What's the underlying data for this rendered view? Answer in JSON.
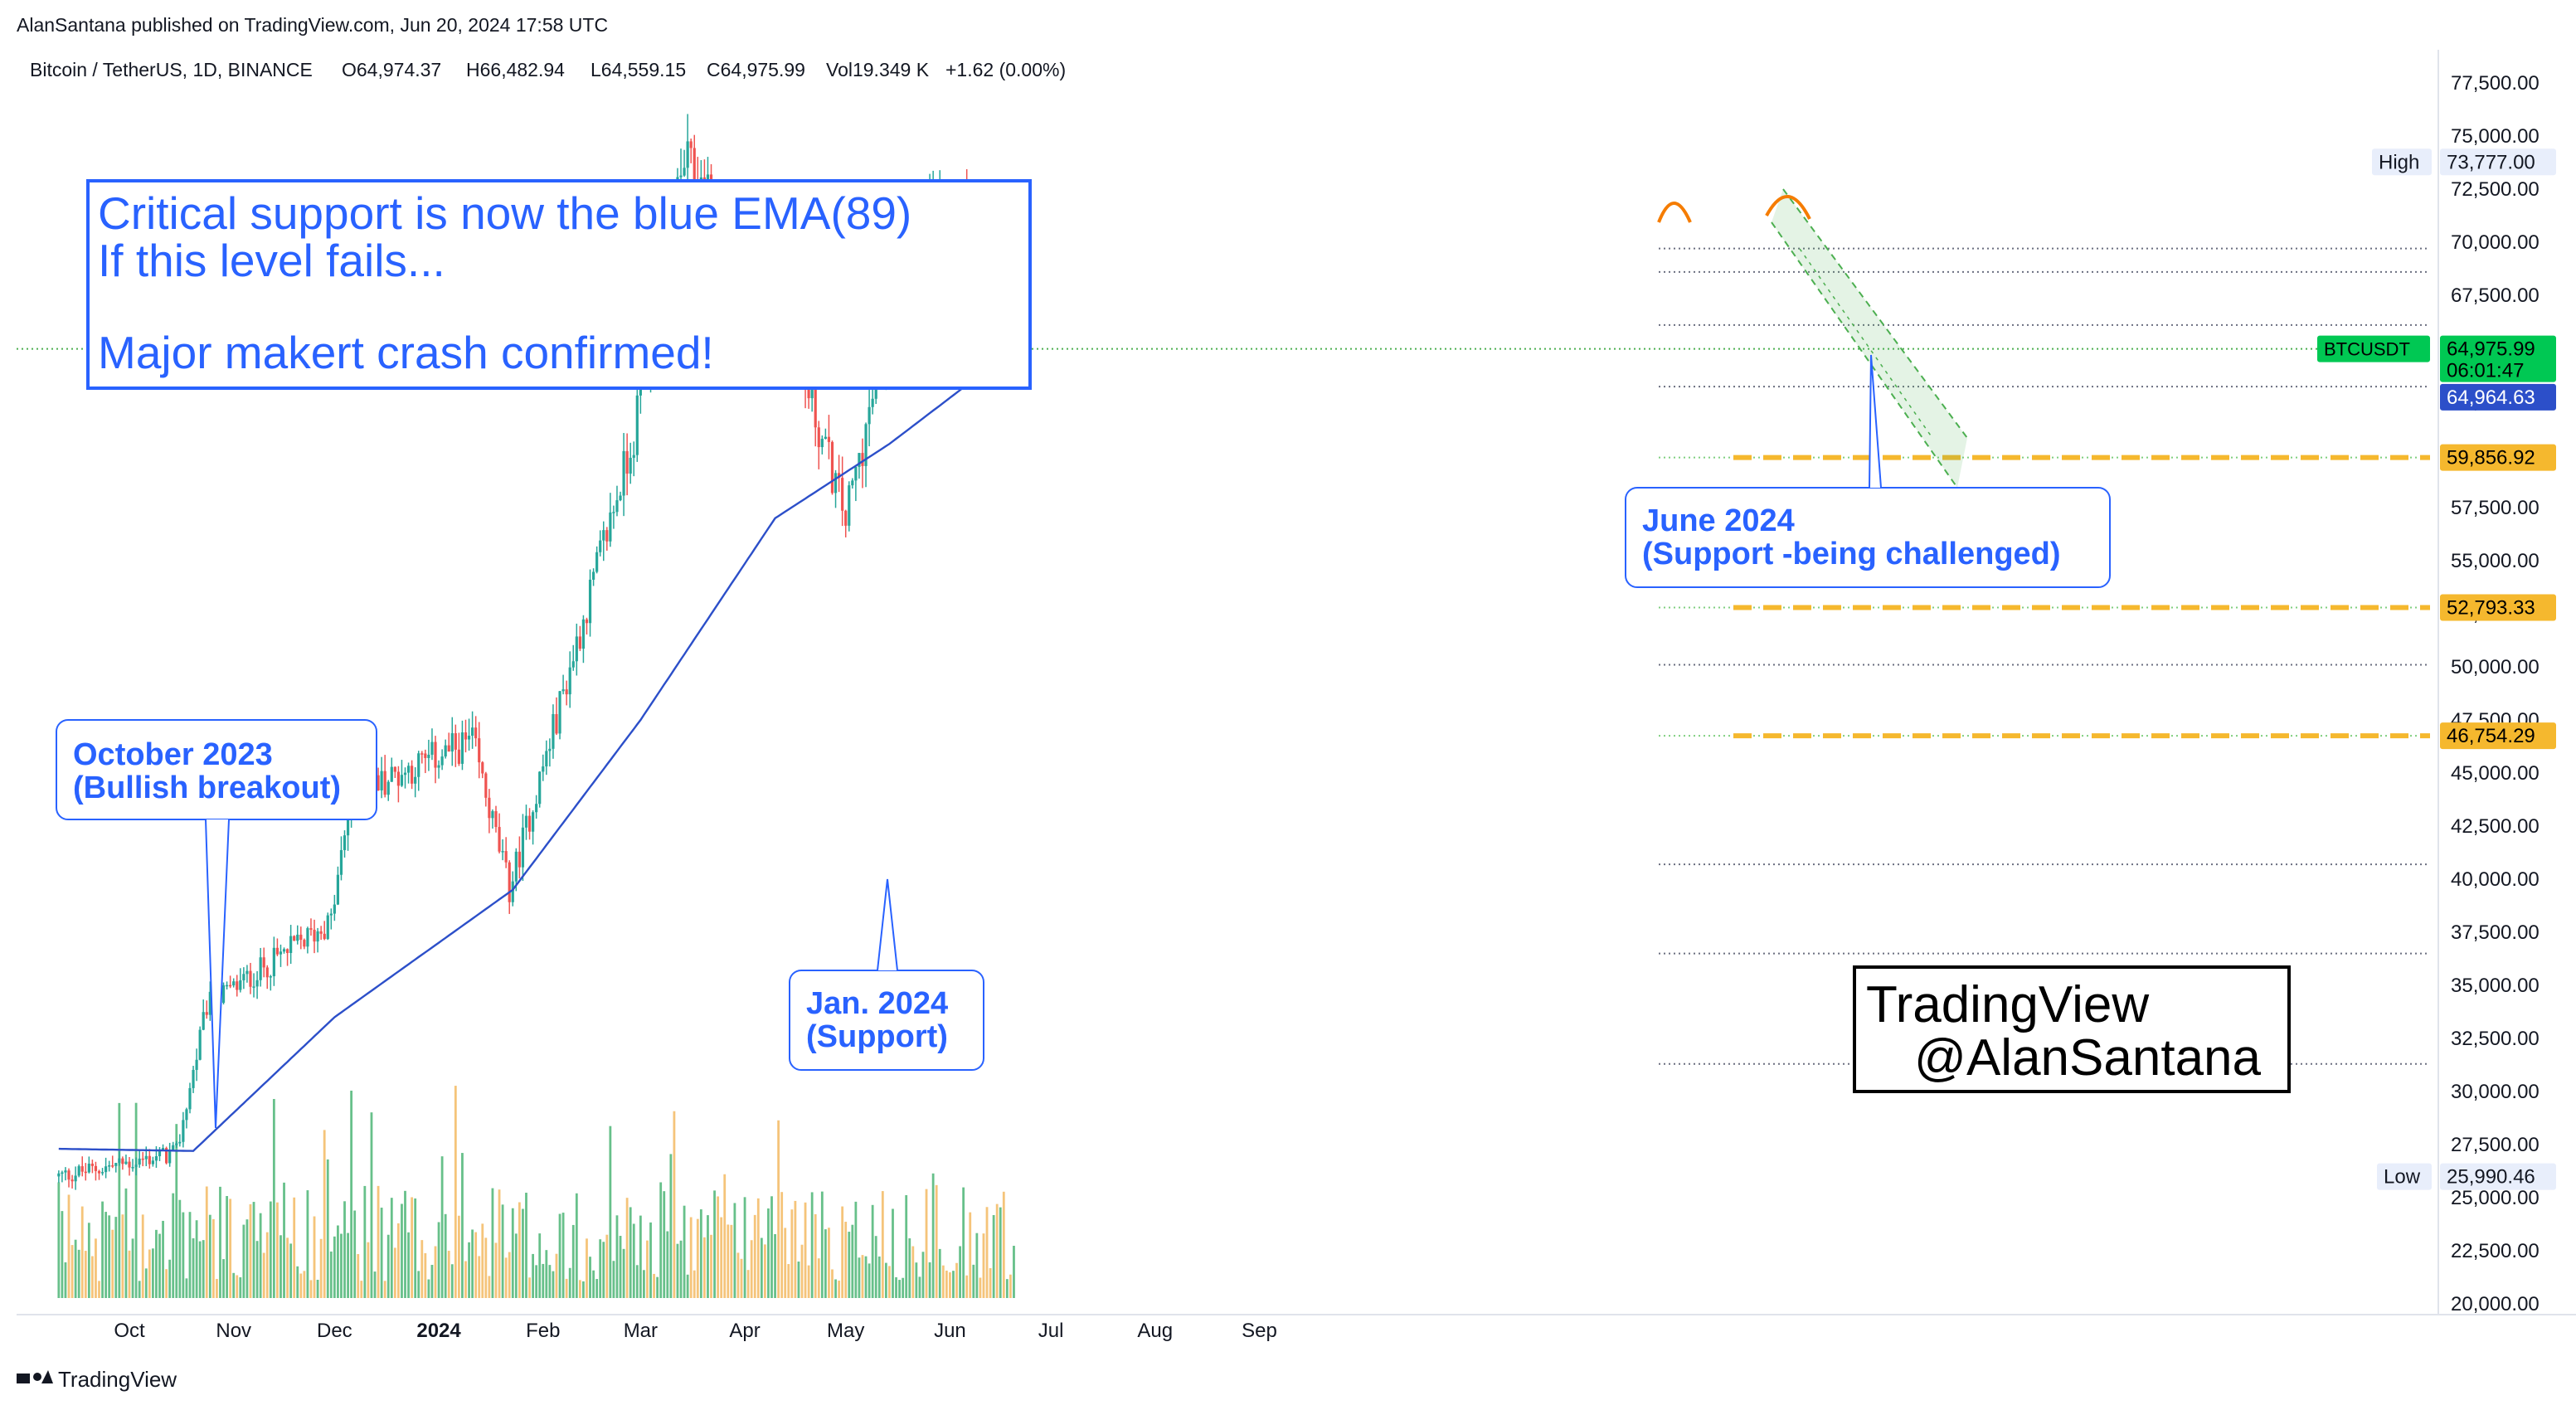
{
  "header": {
    "published_by": "AlanSantana published on TradingView.com, Jun 20, 2024 17:58 UTC"
  },
  "legend": {
    "symbol": "Bitcoin / TetherUS, 1D, BINANCE",
    "open": "O64,974.37",
    "high": "H66,482.94",
    "low": "L64,559.15",
    "close": "C64,975.99",
    "volume": "Vol19.349 K",
    "change": "+1.62 (0.00%)"
  },
  "annotations": {
    "main_box": {
      "line1": "Critical support is now the blue EMA(89)",
      "line2": "If this level fails...",
      "line3": "Major makert crash confirmed!"
    },
    "callout_oct": {
      "line1": "October 2023",
      "line2": "(Bullish breakout)"
    },
    "callout_jan": {
      "line1": "Jan. 2024",
      "line2": "(Support)"
    },
    "callout_jun": {
      "line1": "June 2024",
      "line2": "(Support -being challenged)"
    },
    "watermark": {
      "line1": "TradingView",
      "line2": "@AlanSantana"
    }
  },
  "footer": {
    "logo_text": "TradingView"
  },
  "price_labels": {
    "high_tag": "High",
    "high_value": "73,777.00",
    "low_tag": "Low",
    "low_value": "25,990.46",
    "symbol_tag": "BTCUSDT",
    "last_price": "64,975.99",
    "countdown": "06:01:47",
    "ema_value": "64,964.63",
    "level1": "59,856.92",
    "level2": "52,793.33",
    "level3": "46,754.29"
  },
  "colors": {
    "up": "#26a69a",
    "down": "#ef5350",
    "ema": "#2c4fc9",
    "annotation": "#2962ff",
    "level": "#f5b82e",
    "vol_up": "#67c08a",
    "vol_down": "#f5c47a"
  },
  "chart_data": {
    "type": "candlestick",
    "series_name": "BTCUSDT",
    "ylim": [
      19500,
      79000
    ],
    "y_ticks": [
      "20,000.00",
      "22,500.00",
      "25,000.00",
      "27,500.00",
      "30,000.00",
      "32,500.00",
      "35,000.00",
      "37,500.00",
      "40,000.00",
      "42,500.00",
      "45,000.00",
      "47,500.00",
      "50,000.00",
      "52,500.00",
      "55,000.00",
      "57,500.00",
      "60,000.00",
      "62,500.00",
      "65,000.00",
      "67,500.00",
      "70,000.00",
      "72,500.00",
      "75,000.00",
      "77,500.00"
    ],
    "x_ticks": [
      "Oct",
      "Nov",
      "Dec",
      "2024",
      "Feb",
      "Mar",
      "Apr",
      "May",
      "Jun",
      "Jul",
      "Aug",
      "Sep"
    ],
    "key_points": [
      {
        "date": "2023-09-10",
        "close": 26000
      },
      {
        "date": "2023-10-15",
        "close": 27100
      },
      {
        "date": "2023-10-24",
        "close": 34000
      },
      {
        "date": "2023-11-30",
        "close": 38000
      },
      {
        "date": "2023-12-06",
        "close": 44000
      },
      {
        "date": "2024-01-11",
        "close": 46500
      },
      {
        "date": "2024-01-22",
        "close": 39500
      },
      {
        "date": "2024-02-28",
        "close": 61000
      },
      {
        "date": "2024-03-14",
        "close": 73777
      },
      {
        "date": "2024-04-12",
        "close": 67000
      },
      {
        "date": "2024-05-01",
        "close": 57000
      },
      {
        "date": "2024-05-21",
        "close": 71000
      },
      {
        "date": "2024-06-07",
        "close": 71500
      },
      {
        "date": "2024-06-20",
        "close": 64975.99
      }
    ],
    "ema89_points": [
      {
        "date": "2023-09-10",
        "value": 27300
      },
      {
        "date": "2023-10-20",
        "value": 27200
      },
      {
        "date": "2023-12-01",
        "value": 33500
      },
      {
        "date": "2024-01-23",
        "value": 39500
      },
      {
        "date": "2024-03-01",
        "value": 47500
      },
      {
        "date": "2024-04-10",
        "value": 57000
      },
      {
        "date": "2024-05-14",
        "value": 60500
      },
      {
        "date": "2024-06-20",
        "value": 64964.63
      }
    ],
    "horizontal_levels": [
      59856.92,
      52793.33,
      46754.29
    ],
    "dotted_levels": [
      69700,
      68600,
      66100,
      63200,
      50100,
      40700,
      36500,
      31300
    ],
    "high": 73777.0,
    "low": 25990.46
  }
}
